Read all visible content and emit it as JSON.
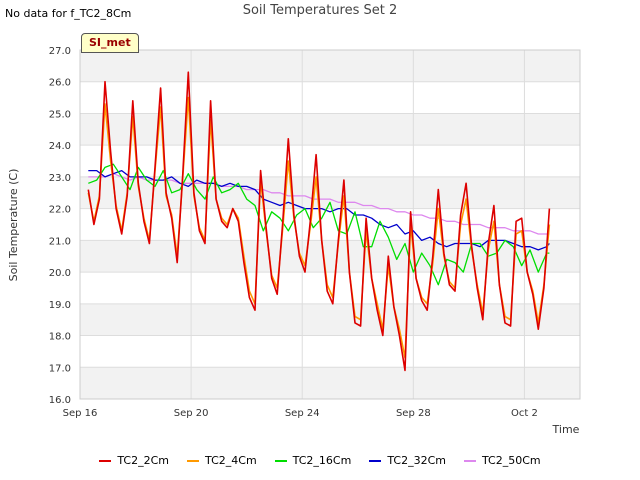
{
  "note": "No data for f_TC2_8Cm",
  "badge": "SI_met",
  "chart_data": {
    "type": "line",
    "title": "Soil Temperatures Set 2",
    "xlabel": "Time",
    "ylabel": "Soil Temperature (C)",
    "x_ticks": [
      {
        "day": 0,
        "label": "Sep 16"
      },
      {
        "day": 4,
        "label": "Sep 20"
      },
      {
        "day": 8,
        "label": "Sep 24"
      },
      {
        "day": 12,
        "label": "Sep 28"
      },
      {
        "day": 16,
        "label": "Oct 2"
      }
    ],
    "xlim_days": [
      0,
      18
    ],
    "ylim": [
      16.0,
      27.0
    ],
    "y_ticks": [
      "16.0",
      "17.0",
      "18.0",
      "19.0",
      "20.0",
      "21.0",
      "22.0",
      "23.0",
      "24.0",
      "25.0",
      "26.0",
      "27.0"
    ],
    "grid": true,
    "legend_position": "bottom",
    "series": [
      {
        "name": "TC2_2Cm",
        "color": "#dd0000",
        "day": [
          0.3,
          0.5,
          0.7,
          0.9,
          1.1,
          1.3,
          1.5,
          1.7,
          1.9,
          2.1,
          2.3,
          2.5,
          2.7,
          2.9,
          3.1,
          3.3,
          3.5,
          3.7,
          3.9,
          4.1,
          4.3,
          4.5,
          4.7,
          4.9,
          5.1,
          5.3,
          5.5,
          5.7,
          5.9,
          6.1,
          6.3,
          6.5,
          6.7,
          6.9,
          7.1,
          7.3,
          7.5,
          7.7,
          7.9,
          8.1,
          8.3,
          8.5,
          8.7,
          8.9,
          9.1,
          9.3,
          9.5,
          9.7,
          9.9,
          10.1,
          10.3,
          10.5,
          10.7,
          10.9,
          11.1,
          11.3,
          11.5,
          11.7,
          11.9,
          12.1,
          12.3,
          12.5,
          12.7,
          12.9,
          13.1,
          13.3,
          13.5,
          13.7,
          13.9,
          14.1,
          14.3,
          14.5,
          14.7,
          14.9,
          15.1,
          15.3,
          15.5,
          15.7,
          15.9,
          16.1,
          16.3,
          16.5,
          16.7,
          16.9
        ],
        "values": [
          22.6,
          21.5,
          22.3,
          26.0,
          23.8,
          22.0,
          21.2,
          22.4,
          25.4,
          22.8,
          21.6,
          20.9,
          23.3,
          25.8,
          22.5,
          21.7,
          20.3,
          23.1,
          26.3,
          22.5,
          21.3,
          20.9,
          25.4,
          22.3,
          21.6,
          21.4,
          22.0,
          21.6,
          20.3,
          19.2,
          18.8,
          23.2,
          21.4,
          19.8,
          19.3,
          21.6,
          24.2,
          21.8,
          20.5,
          20.0,
          21.7,
          23.7,
          21.0,
          19.4,
          19.0,
          21.0,
          22.9,
          20.0,
          18.4,
          18.3,
          21.7,
          19.8,
          18.8,
          18.0,
          20.5,
          18.9,
          18.0,
          16.9,
          21.9,
          19.8,
          19.1,
          18.8,
          20.5,
          22.6,
          20.6,
          19.6,
          19.4,
          21.8,
          22.8,
          20.8,
          19.5,
          18.5,
          20.9,
          22.1,
          19.6,
          18.4,
          18.3,
          21.6,
          21.7,
          20.0,
          19.3,
          18.2,
          19.5,
          22.0
        ]
      },
      {
        "name": "TC2_4Cm",
        "color": "#ff9900",
        "day": [
          0.3,
          0.5,
          0.7,
          0.9,
          1.1,
          1.3,
          1.5,
          1.7,
          1.9,
          2.1,
          2.3,
          2.5,
          2.7,
          2.9,
          3.1,
          3.3,
          3.5,
          3.7,
          3.9,
          4.1,
          4.3,
          4.5,
          4.7,
          4.9,
          5.1,
          5.3,
          5.5,
          5.7,
          5.9,
          6.1,
          6.3,
          6.5,
          6.7,
          6.9,
          7.1,
          7.3,
          7.5,
          7.7,
          7.9,
          8.1,
          8.3,
          8.5,
          8.7,
          8.9,
          9.1,
          9.3,
          9.5,
          9.7,
          9.9,
          10.1,
          10.3,
          10.5,
          10.7,
          10.9,
          11.1,
          11.3,
          11.5,
          11.7,
          11.9,
          12.1,
          12.3,
          12.5,
          12.7,
          12.9,
          13.1,
          13.3,
          13.5,
          13.7,
          13.9,
          14.1,
          14.3,
          14.5,
          14.7,
          14.9,
          15.1,
          15.3,
          15.5,
          15.7,
          15.9,
          16.1,
          16.3,
          16.5,
          16.7,
          16.9
        ],
        "values": [
          22.5,
          21.6,
          22.4,
          25.3,
          23.5,
          22.1,
          21.3,
          22.5,
          24.9,
          22.7,
          21.7,
          21.0,
          23.2,
          25.2,
          22.4,
          21.8,
          20.5,
          23.0,
          25.5,
          22.4,
          21.4,
          21.0,
          24.8,
          22.3,
          21.7,
          21.5,
          22.0,
          21.7,
          20.5,
          19.4,
          19.0,
          22.9,
          21.3,
          19.9,
          19.5,
          21.4,
          23.5,
          21.7,
          20.6,
          20.2,
          21.5,
          23.0,
          21.0,
          19.6,
          19.2,
          20.9,
          22.4,
          20.0,
          18.6,
          18.5,
          21.3,
          19.8,
          19.0,
          18.2,
          20.2,
          18.9,
          18.2,
          17.3,
          21.5,
          19.8,
          19.2,
          19.0,
          20.3,
          22.0,
          20.5,
          19.7,
          19.5,
          21.5,
          22.3,
          20.7,
          19.6,
          18.7,
          20.7,
          21.6,
          19.6,
          18.6,
          18.5,
          21.2,
          21.3,
          20.0,
          19.4,
          18.4,
          19.6,
          21.5
        ]
      },
      {
        "name": "TC2_16Cm",
        "color": "#00dd00",
        "day": [
          0.3,
          0.6,
          0.9,
          1.2,
          1.5,
          1.8,
          2.1,
          2.4,
          2.7,
          3.0,
          3.3,
          3.6,
          3.9,
          4.2,
          4.5,
          4.8,
          5.1,
          5.4,
          5.7,
          6.0,
          6.3,
          6.6,
          6.9,
          7.2,
          7.5,
          7.8,
          8.1,
          8.4,
          8.7,
          9.0,
          9.3,
          9.6,
          9.9,
          10.2,
          10.5,
          10.8,
          11.1,
          11.4,
          11.7,
          12.0,
          12.3,
          12.6,
          12.9,
          13.2,
          13.5,
          13.8,
          14.1,
          14.4,
          14.7,
          15.0,
          15.3,
          15.6,
          15.9,
          16.2,
          16.5,
          16.8,
          16.9
        ],
        "values": [
          22.8,
          22.9,
          23.3,
          23.4,
          23.0,
          22.6,
          23.3,
          22.9,
          22.7,
          23.2,
          22.5,
          22.6,
          23.1,
          22.6,
          22.3,
          23.0,
          22.5,
          22.6,
          22.8,
          22.3,
          22.1,
          21.3,
          21.9,
          21.7,
          21.3,
          21.8,
          22.0,
          21.4,
          21.7,
          22.2,
          21.3,
          21.2,
          21.9,
          20.8,
          20.8,
          21.6,
          21.1,
          20.4,
          20.9,
          20.0,
          20.6,
          20.2,
          19.6,
          20.4,
          20.3,
          20.0,
          20.9,
          20.9,
          20.5,
          20.6,
          21.0,
          20.8,
          20.2,
          20.7,
          20.0,
          20.6,
          20.6
        ]
      },
      {
        "name": "TC2_32Cm",
        "color": "#0000cc",
        "day": [
          0.3,
          0.6,
          0.9,
          1.2,
          1.5,
          1.8,
          2.1,
          2.4,
          2.7,
          3.0,
          3.3,
          3.6,
          3.9,
          4.2,
          4.5,
          4.8,
          5.1,
          5.4,
          5.7,
          6.0,
          6.3,
          6.6,
          6.9,
          7.2,
          7.5,
          7.8,
          8.1,
          8.4,
          8.7,
          9.0,
          9.3,
          9.6,
          9.9,
          10.2,
          10.5,
          10.8,
          11.1,
          11.4,
          11.7,
          12.0,
          12.3,
          12.6,
          12.9,
          13.2,
          13.5,
          13.8,
          14.1,
          14.4,
          14.7,
          15.0,
          15.3,
          15.6,
          15.9,
          16.2,
          16.5,
          16.8,
          16.9
        ],
        "values": [
          23.2,
          23.2,
          23.0,
          23.1,
          23.2,
          23.0,
          23.0,
          23.0,
          22.9,
          22.9,
          23.0,
          22.8,
          22.7,
          22.9,
          22.8,
          22.8,
          22.7,
          22.8,
          22.7,
          22.7,
          22.6,
          22.3,
          22.2,
          22.1,
          22.2,
          22.1,
          22.0,
          22.0,
          22.0,
          21.9,
          22.0,
          22.0,
          21.8,
          21.8,
          21.7,
          21.5,
          21.4,
          21.5,
          21.2,
          21.3,
          21.0,
          21.1,
          20.9,
          20.8,
          20.9,
          20.9,
          20.9,
          20.8,
          21.0,
          21.0,
          21.0,
          20.9,
          20.8,
          20.8,
          20.7,
          20.8,
          20.9
        ]
      },
      {
        "name": "TC2_50Cm",
        "color": "#dd88ee",
        "day": [
          0.3,
          0.6,
          0.9,
          1.2,
          1.5,
          1.8,
          2.1,
          2.4,
          2.7,
          3.0,
          3.3,
          3.6,
          3.9,
          4.2,
          4.5,
          4.8,
          5.1,
          5.4,
          5.7,
          6.0,
          6.3,
          6.6,
          6.9,
          7.2,
          7.5,
          7.8,
          8.1,
          8.4,
          8.7,
          9.0,
          9.3,
          9.6,
          9.9,
          10.2,
          10.5,
          10.8,
          11.1,
          11.4,
          11.7,
          12.0,
          12.3,
          12.6,
          12.9,
          13.2,
          13.5,
          13.8,
          14.1,
          14.4,
          14.7,
          15.0,
          15.3,
          15.6,
          15.9,
          16.2,
          16.5,
          16.8,
          16.9
        ],
        "values": [
          23.0,
          23.0,
          23.0,
          23.1,
          23.0,
          22.9,
          23.0,
          22.9,
          22.9,
          22.9,
          22.9,
          22.8,
          22.8,
          22.8,
          22.8,
          22.8,
          22.7,
          22.7,
          22.7,
          22.6,
          22.6,
          22.6,
          22.5,
          22.5,
          22.4,
          22.4,
          22.4,
          22.3,
          22.3,
          22.3,
          22.2,
          22.2,
          22.2,
          22.1,
          22.1,
          22.0,
          22.0,
          21.9,
          21.9,
          21.8,
          21.8,
          21.7,
          21.7,
          21.6,
          21.6,
          21.5,
          21.5,
          21.5,
          21.4,
          21.4,
          21.4,
          21.3,
          21.3,
          21.3,
          21.2,
          21.2,
          21.2
        ]
      }
    ]
  }
}
